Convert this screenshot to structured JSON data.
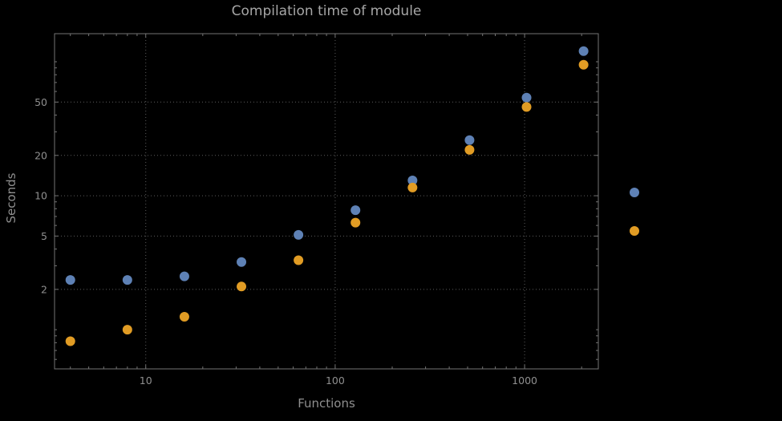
{
  "page": {
    "background": "#000000"
  },
  "chart_data": {
    "type": "scatter",
    "title": "Compilation time of module",
    "xlabel": "Functions",
    "ylabel": "Seconds",
    "xscale": "log",
    "yscale": "log",
    "xlim": [
      3.3,
      2450
    ],
    "ylim": [
      0.51,
      162
    ],
    "x": [
      4,
      8,
      16,
      32,
      64,
      128,
      256,
      512,
      1024,
      2048
    ],
    "series": [
      {
        "name": "blue",
        "color": "#5e81b5",
        "values": [
          2.35,
          2.35,
          2.5,
          3.2,
          5.1,
          7.8,
          13,
          26,
          54,
          120
        ]
      },
      {
        "name": "orange",
        "color": "#e19c24",
        "values": [
          0.82,
          1.0,
          1.25,
          2.1,
          3.3,
          6.3,
          11.5,
          22,
          46,
          95
        ]
      }
    ],
    "x_ticks": [
      10,
      100,
      1000
    ],
    "y_ticks": [
      2,
      5,
      10,
      20,
      50
    ],
    "grid": {
      "style": "dotted",
      "x_lines": [
        10,
        100,
        1000
      ],
      "y_lines": [
        2,
        5,
        10,
        20,
        50
      ]
    },
    "legend": {
      "position": "right",
      "markers": [
        {
          "name": "blue",
          "color": "#5e81b5"
        },
        {
          "name": "orange",
          "color": "#e19c24"
        }
      ]
    },
    "marker_size_px": 12,
    "colors": {
      "background": "#000000",
      "frame": "#747474",
      "grid": "#5c5c5c",
      "title_text": "#a6a6a6",
      "label_text": "#8f8f8f",
      "tick_text": "#8f8f8f"
    }
  }
}
